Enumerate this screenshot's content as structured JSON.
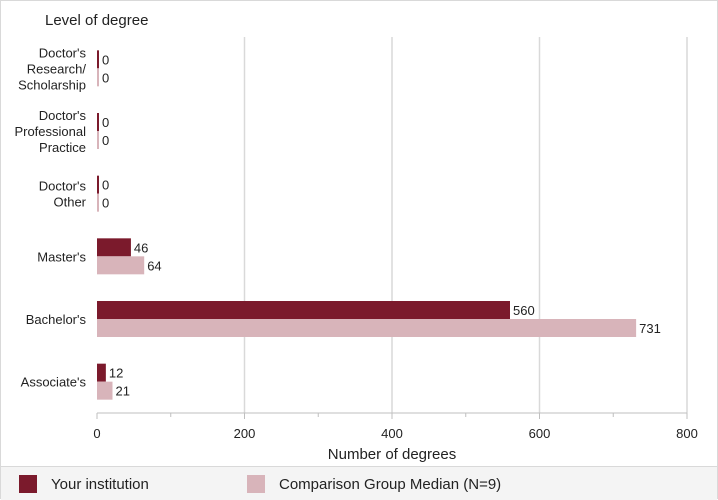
{
  "chart_data": {
    "type": "bar",
    "orientation": "horizontal",
    "title": "Level of degree",
    "xlabel": "Number of degrees",
    "xlim": [
      0,
      800
    ],
    "xticks": [
      0,
      200,
      400,
      600,
      800
    ],
    "grid": true,
    "legend_position": "bottom",
    "categories": [
      "Doctor's Research/ Scholarship",
      "Doctor's Professional Practice",
      "Doctor's Other",
      "Master's",
      "Bachelor's",
      "Associate's"
    ],
    "series": [
      {
        "name": "Your institution",
        "color": "#7b1a2c",
        "values": [
          0,
          0,
          0,
          46,
          560,
          12
        ]
      },
      {
        "name": "Comparison Group Median (N=9)",
        "color": "#d8b4ba",
        "values": [
          0,
          0,
          0,
          64,
          731,
          21
        ]
      }
    ]
  }
}
